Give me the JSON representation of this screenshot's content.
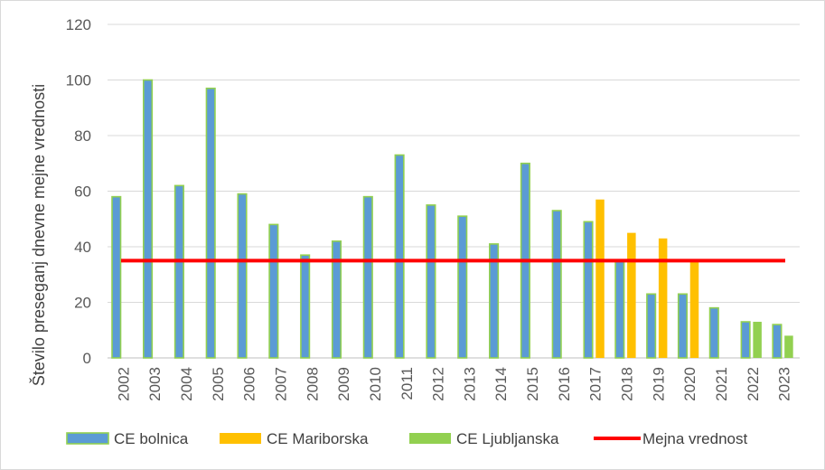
{
  "chart_data": {
    "type": "bar",
    "title": "",
    "xlabel": "",
    "ylabel": "Število preseganj  dnevne mejne vrednosti",
    "ylim": [
      0,
      120
    ],
    "yticks": [
      0,
      20,
      40,
      60,
      80,
      100,
      120
    ],
    "grid": true,
    "legend_position": "bottom",
    "categories": [
      "2002",
      "2003",
      "2004",
      "2005",
      "2006",
      "2007",
      "2008",
      "2009",
      "2010",
      "2011",
      "2012",
      "2013",
      "2014",
      "2015",
      "2016",
      "2017",
      "2018",
      "2019",
      "2020",
      "2021",
      "2022",
      "2023"
    ],
    "series": [
      {
        "name": "CE bolnica",
        "color": "#5B9BD5",
        "edge": "#92D050",
        "values": [
          58,
          100,
          62,
          97,
          59,
          48,
          37,
          42,
          58,
          73,
          55,
          51,
          41,
          70,
          53,
          49,
          35,
          23,
          23,
          18,
          13,
          12
        ]
      },
      {
        "name": "CE Mariborska",
        "color": "#FFC000",
        "values": [
          null,
          null,
          null,
          null,
          null,
          null,
          null,
          null,
          null,
          null,
          null,
          null,
          null,
          null,
          null,
          57,
          45,
          43,
          35,
          null,
          null,
          null
        ]
      },
      {
        "name": "CE Ljubljanska",
        "color": "#92D050",
        "values": [
          null,
          null,
          null,
          null,
          null,
          null,
          null,
          null,
          null,
          null,
          null,
          null,
          null,
          null,
          null,
          null,
          null,
          null,
          null,
          null,
          13,
          8
        ]
      }
    ],
    "limit_line": {
      "name": "Mejna vrednost",
      "value": 35,
      "color": "#FF0000"
    }
  }
}
